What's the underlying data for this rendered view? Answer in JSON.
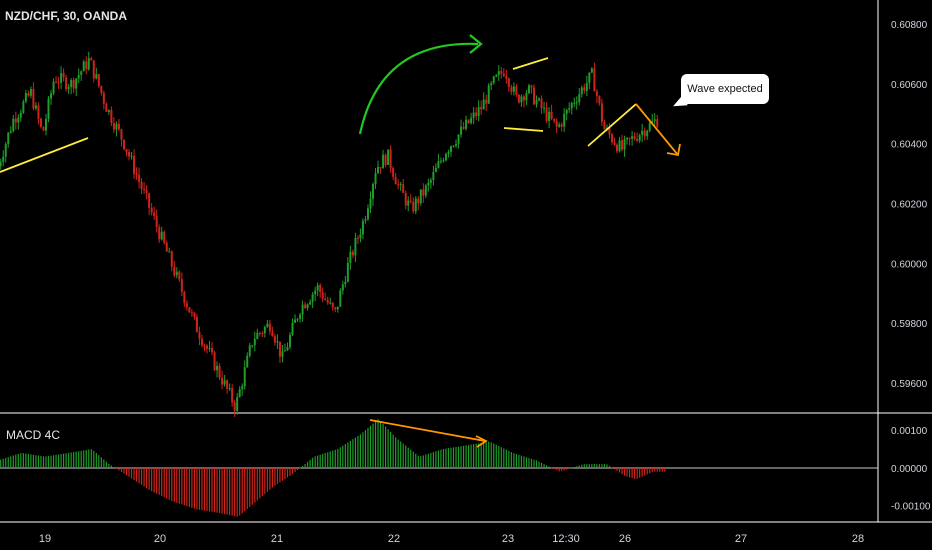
{
  "header": {
    "title": "NZD/CHF, 30, OANDA",
    "macd_title": "MACD 4C",
    "callout_text": "Wave expected"
  },
  "colors": {
    "up": "#26a69a",
    "bull": "#1f9e2a",
    "bear": "#d0241b",
    "annotation_yellow": "#ffeb3b",
    "annotation_orange": "#ff9800",
    "arrow_green": "#22c722"
  },
  "chart_data": [
    {
      "type": "candlestick",
      "title": "NZD/CHF, 30, OANDA",
      "ylim": [
        0.5951,
        0.6088
      ],
      "yticks": [
        "0.60800",
        "0.60600",
        "0.60400",
        "0.60200",
        "0.60000",
        "0.59800",
        "0.59600"
      ],
      "ytick_values": [
        0.608,
        0.606,
        0.604,
        0.602,
        0.6,
        0.598,
        0.596
      ],
      "xticks": [
        "19",
        "20",
        "21",
        "22",
        "23",
        "12:30",
        "26",
        "27",
        "28"
      ],
      "price_path_day": [
        18.6,
        18.75,
        18.9,
        19.0,
        19.1,
        19.25,
        19.4,
        19.55,
        19.7,
        19.85,
        20.0,
        20.15,
        20.3,
        20.45,
        20.55,
        20.65,
        20.8,
        20.95,
        21.05,
        21.2,
        21.35,
        21.5,
        21.6,
        21.75,
        21.85,
        21.95,
        22.05,
        22.15,
        22.3,
        22.45,
        22.6,
        22.75,
        22.85,
        22.95,
        23.05,
        23.15,
        23.3,
        23.4,
        23.55,
        23.7,
        23.8,
        23.95,
        24.05,
        24.15,
        24.25
      ],
      "price_path": [
        0.603,
        0.6048,
        0.6057,
        0.6043,
        0.6062,
        0.606,
        0.6068,
        0.6052,
        0.604,
        0.6025,
        0.601,
        0.5995,
        0.598,
        0.5968,
        0.596,
        0.5952,
        0.5975,
        0.598,
        0.5968,
        0.5985,
        0.5992,
        0.5983,
        0.5998,
        0.6015,
        0.6032,
        0.6036,
        0.6025,
        0.6018,
        0.6026,
        0.6038,
        0.6045,
        0.6052,
        0.606,
        0.6065,
        0.6055,
        0.6058,
        0.605,
        0.6045,
        0.6055,
        0.6063,
        0.6045,
        0.6038,
        0.6042,
        0.6045,
        0.6048
      ]
    },
    {
      "type": "bar",
      "title": "MACD 4C",
      "ylim": [
        -0.00138,
        0.00143
      ],
      "yticks": [
        "0.00100",
        "0.00000",
        "-0.00100"
      ],
      "ytick_values": [
        0.001,
        0.0,
        -0.001
      ],
      "histogram_day": [
        18.6,
        18.8,
        19.0,
        19.2,
        19.4,
        19.55,
        19.7,
        19.9,
        20.1,
        20.3,
        20.5,
        20.65,
        20.8,
        20.95,
        21.1,
        21.3,
        21.5,
        21.7,
        21.85,
        22.0,
        22.2,
        22.4,
        22.6,
        22.8,
        23.0,
        23.2,
        23.4,
        23.6,
        23.8,
        23.95,
        24.05,
        24.2,
        24.3
      ],
      "histogram": [
        0.0002,
        0.0004,
        0.0003,
        0.0004,
        0.0005,
        0.0001,
        -0.0002,
        -0.0006,
        -0.0009,
        -0.0011,
        -0.0012,
        -0.0013,
        -0.0009,
        -0.0005,
        -0.0002,
        0.0003,
        0.0005,
        0.0009,
        0.0013,
        0.0008,
        0.0003,
        0.0005,
        0.0006,
        0.0007,
        0.0004,
        0.0002,
        -0.0001,
        0.0001,
        0.0001,
        -0.0002,
        -0.0003,
        -0.0001,
        -0.0001
      ]
    }
  ]
}
